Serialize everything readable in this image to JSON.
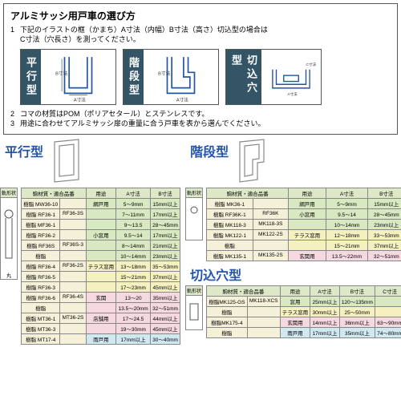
{
  "top": {
    "title": "アルミサッシ用戸車の選び方",
    "line1": "下記のイラストの框（かまち）A寸法（内幅）B寸法（高さ）切込型の場合は",
    "line1b": "C寸法（穴長さ）を測ってください。",
    "line2": "コマの材質はPOM（ポリアセタール）とステンレスです。",
    "line3": "用途に合わせてアルミサッシ扉の重量に合う戸車を表から選んでください。",
    "d1": "平行型",
    "d2": "階段型",
    "d3": "切込穴型",
    "labA": "A寸法",
    "labB": "B寸法",
    "labC": "C寸法"
  },
  "tbl": {
    "hShape": "軌形状",
    "hPart": "駒材質・適合品番",
    "hUse": "用途",
    "hA": "A寸法",
    "hB": "B寸法",
    "hC": "C寸法",
    "maru": "丸"
  },
  "heikou": {
    "title": "平行型",
    "rows": [
      {
        "c": "row-g",
        "s": "樹脂",
        "p": "MW36-10",
        "p2": "",
        "u": "網戸用",
        "a": "5～9mm",
        "b": "15mm以上"
      },
      {
        "c": "row-g",
        "s": "樹脂",
        "p": "RF36-1",
        "p2": "RF36-3S",
        "u": "",
        "a": "7～11mm",
        "b": "17mm以上"
      },
      {
        "c": "row-g",
        "s": "樹脂",
        "p": "MF36-1",
        "p2": "",
        "u": "",
        "a": "9～13.5",
        "b": "28～45mm"
      },
      {
        "c": "row-g",
        "s": "樹脂",
        "p": "RF36-2",
        "p2": "",
        "u": "小窓用",
        "a": "9.5～14",
        "b": "17mm以上"
      },
      {
        "c": "row-g",
        "s": "樹脂",
        "p": "RF36S",
        "p2": "RF36S-3",
        "u": "",
        "a": "8～14mm",
        "b": "21mm以上"
      },
      {
        "c": "row-g",
        "s": "樹脂",
        "p": "",
        "p2": "",
        "u": "",
        "a": "10～14mm",
        "b": "23mm以上"
      },
      {
        "c": "row-y",
        "s": "樹脂",
        "p": "RF36-4",
        "p2": "RF36-2S",
        "u": "テラス窓用",
        "a": "13～18mm",
        "b": "35～53mm"
      },
      {
        "c": "row-y",
        "s": "樹脂",
        "p": "RF36-5",
        "p2": "",
        "u": "",
        "a": "15～21mm",
        "b": "37mm以上"
      },
      {
        "c": "row-y",
        "s": "樹脂",
        "p": "RF36-3",
        "p2": "",
        "u": "",
        "a": "17～23mm",
        "b": "45mm以上"
      },
      {
        "c": "row-p",
        "s": "樹脂",
        "p": "RF36-6",
        "p2": "RF36-4S",
        "u": "玄関",
        "a": "13～20",
        "b": "35mm以上"
      },
      {
        "c": "row-p",
        "s": "樹脂",
        "p": "",
        "p2": "",
        "u": "",
        "a": "13.5～20mm",
        "b": "32～51mm"
      },
      {
        "c": "row-p",
        "s": "樹脂",
        "p": "MT36-1",
        "p2": "MT36-2S",
        "u": "店舗用",
        "a": "17～24.5",
        "b": "44mm以上"
      },
      {
        "c": "row-p",
        "s": "樹脂",
        "p": "MT36-3",
        "p2": "",
        "u": "",
        "a": "19～30mm",
        "b": "45mm以上"
      },
      {
        "c": "row-b",
        "s": "樹脂",
        "p": "MT17-4",
        "p2": "",
        "u": "雨戸用",
        "a": "17mm以上",
        "b": "30～40mm"
      }
    ]
  },
  "kaidan": {
    "title": "階段型",
    "rows": [
      {
        "c": "row-g",
        "s": "樹脂",
        "p": "MK36-1",
        "p2": "",
        "u": "網戸用",
        "a": "5～9mm",
        "b": "15mm以上"
      },
      {
        "c": "row-g",
        "s": "樹脂",
        "p": "RF36K-1",
        "p2": "RF36K",
        "u": "小窓用",
        "a": "9.5～14",
        "b": "28～45mm"
      },
      {
        "c": "row-g",
        "s": "樹脂",
        "p": "MK118-3",
        "p2": "MK118-3S",
        "u": "",
        "a": "10～14mm",
        "b": "23mm以上"
      },
      {
        "c": "row-y",
        "s": "樹脂",
        "p": "MK122-1",
        "p2": "MK122-2S",
        "u": "テラス窓用",
        "a": "12～18mm",
        "b": "33～53mm"
      },
      {
        "c": "row-y",
        "s": "樹脂",
        "p": "",
        "p2": "",
        "u": "",
        "a": "15～21mm",
        "b": "37mm以上"
      },
      {
        "c": "row-p",
        "s": "樹脂",
        "p": "MK135-1",
        "p2": "MK135-2S",
        "u": "玄関用",
        "a": "13.5～22mm",
        "b": "32～51mm"
      }
    ]
  },
  "kirikomi": {
    "title": "切込穴型",
    "rows": [
      {
        "c": "row-g",
        "s": "",
        "p": "樹脂MK125-GS",
        "p2": "MK118-XCS",
        "u": "窓用",
        "a": "25mm以上",
        "b": "120～135mm",
        "cc": ""
      },
      {
        "c": "row-y",
        "s": "",
        "p": "樹脂",
        "p2": "",
        "u": "テラス窓用",
        "a": "30mm以上",
        "b": "25～50mm",
        "cc": ""
      },
      {
        "c": "row-p",
        "s": "",
        "p": "樹脂MK175-4",
        "p2": "",
        "u": "玄関用",
        "a": "14mm以上",
        "b": "36mm以上",
        "cc": "63～90mm"
      },
      {
        "c": "row-b",
        "s": "",
        "p": "樹脂",
        "p2": "",
        "u": "雨戸用",
        "a": "17mm以上",
        "b": "35mm以上",
        "cc": "74～80mm"
      }
    ]
  }
}
